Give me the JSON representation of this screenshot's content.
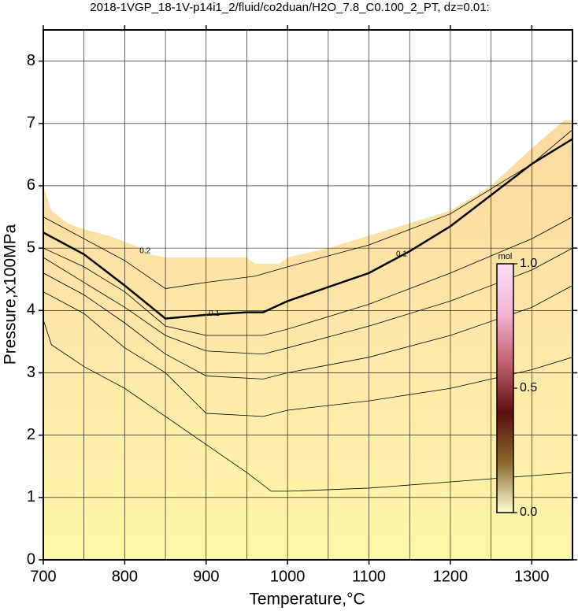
{
  "chart_data": {
    "type": "contour",
    "title": "2018-1VGP_18-1V-p14i1_2/fluid/co2duan/H2O_7.8_C0.100_2_PT, dz=0.01:",
    "x_label": "Temperature,°C",
    "y_label": "Pressure,x100MPa",
    "xlim": [
      700,
      1350
    ],
    "ylim": [
      0,
      8.5
    ],
    "xticks": [
      700,
      800,
      900,
      1000,
      1100,
      1200,
      1300
    ],
    "yticks": [
      0,
      1,
      2,
      3,
      4,
      5,
      6,
      7,
      8
    ],
    "xgrid": [
      750,
      850,
      950,
      1050,
      1150,
      1250
    ],
    "grid": true,
    "fill_colors": [
      "#fdf6a8",
      "#fde8a8",
      "#fcd9a0"
    ],
    "boundary": {
      "x": [
        700,
        710,
        720,
        730,
        750,
        780,
        800,
        820,
        830,
        850,
        900,
        950,
        960,
        990,
        1000,
        1050,
        1100,
        1150,
        1200,
        1250,
        1300,
        1340,
        1350
      ],
      "y": [
        6.0,
        5.6,
        5.5,
        5.4,
        5.3,
        5.2,
        5.1,
        5.0,
        4.9,
        4.85,
        4.85,
        4.85,
        4.75,
        4.75,
        4.85,
        5.0,
        5.2,
        5.4,
        5.6,
        6.0,
        6.6,
        7.05,
        7.05
      ]
    },
    "contours": [
      {
        "x": [
          700,
          710,
          750,
          800,
          850,
          900,
          950,
          980,
          1000,
          1100,
          1200,
          1300,
          1350
        ],
        "y": [
          3.85,
          3.45,
          3.1,
          2.75,
          2.3,
          1.85,
          1.4,
          1.1,
          1.1,
          1.15,
          1.25,
          1.35,
          1.4
        ]
      },
      {
        "x": [
          700,
          750,
          800,
          850,
          900,
          970,
          1000,
          1100,
          1200,
          1300,
          1350
        ],
        "y": [
          4.3,
          3.95,
          3.4,
          3.0,
          2.35,
          2.3,
          2.4,
          2.55,
          2.75,
          3.05,
          3.25
        ]
      },
      {
        "x": [
          700,
          750,
          800,
          850,
          900,
          970,
          1000,
          1100,
          1200,
          1300,
          1350
        ],
        "y": [
          4.6,
          4.25,
          3.8,
          3.3,
          2.95,
          2.9,
          3.0,
          3.25,
          3.6,
          4.05,
          4.4
        ]
      },
      {
        "x": [
          700,
          750,
          800,
          850,
          900,
          970,
          1000,
          1100,
          1200,
          1300,
          1350
        ],
        "y": [
          4.85,
          4.45,
          4.05,
          3.6,
          3.35,
          3.3,
          3.4,
          3.75,
          4.15,
          4.65,
          5.0
        ]
      },
      {
        "x": [
          700,
          750,
          800,
          850,
          900,
          970,
          1000,
          1100,
          1200,
          1300,
          1350
        ],
        "y": [
          5.0,
          4.7,
          4.3,
          3.75,
          3.6,
          3.6,
          3.7,
          4.1,
          4.6,
          5.15,
          5.5
        ]
      },
      {
        "x": [
          700,
          750,
          780,
          800,
          850,
          900,
          950,
          970,
          1000,
          1100,
          1150,
          1200,
          1250,
          1300,
          1350
        ],
        "y": [
          5.25,
          4.9,
          4.6,
          4.4,
          3.87,
          3.93,
          3.97,
          3.97,
          4.15,
          4.6,
          4.95,
          5.35,
          5.85,
          6.35,
          6.75
        ],
        "bold": true
      },
      {
        "x": [
          700,
          800,
          850,
          900,
          960,
          1000,
          1100,
          1200,
          1300,
          1350
        ],
        "y": [
          5.5,
          4.8,
          4.35,
          4.45,
          4.55,
          4.7,
          5.05,
          5.55,
          6.35,
          6.9
        ]
      }
    ],
    "contour_labels": [
      {
        "text": "0.1",
        "x": 910,
        "y": 3.95
      },
      {
        "text": "0.1",
        "x": 1140,
        "y": 4.9
      },
      {
        "text": "0.2",
        "x": 825,
        "y": 4.95
      }
    ],
    "colorbar": {
      "label": "mol",
      "lim": [
        0,
        1
      ],
      "ticks": [
        {
          "value": 0,
          "label": "0.0"
        },
        {
          "value": 0.5,
          "label": "0.5"
        },
        {
          "value": 1,
          "label": "1.0"
        }
      ],
      "colors": [
        "#ffffd8",
        "#8a6a2a",
        "#5a0e10",
        "#c06070",
        "#f4b4d4",
        "#f8e0f4"
      ]
    }
  }
}
